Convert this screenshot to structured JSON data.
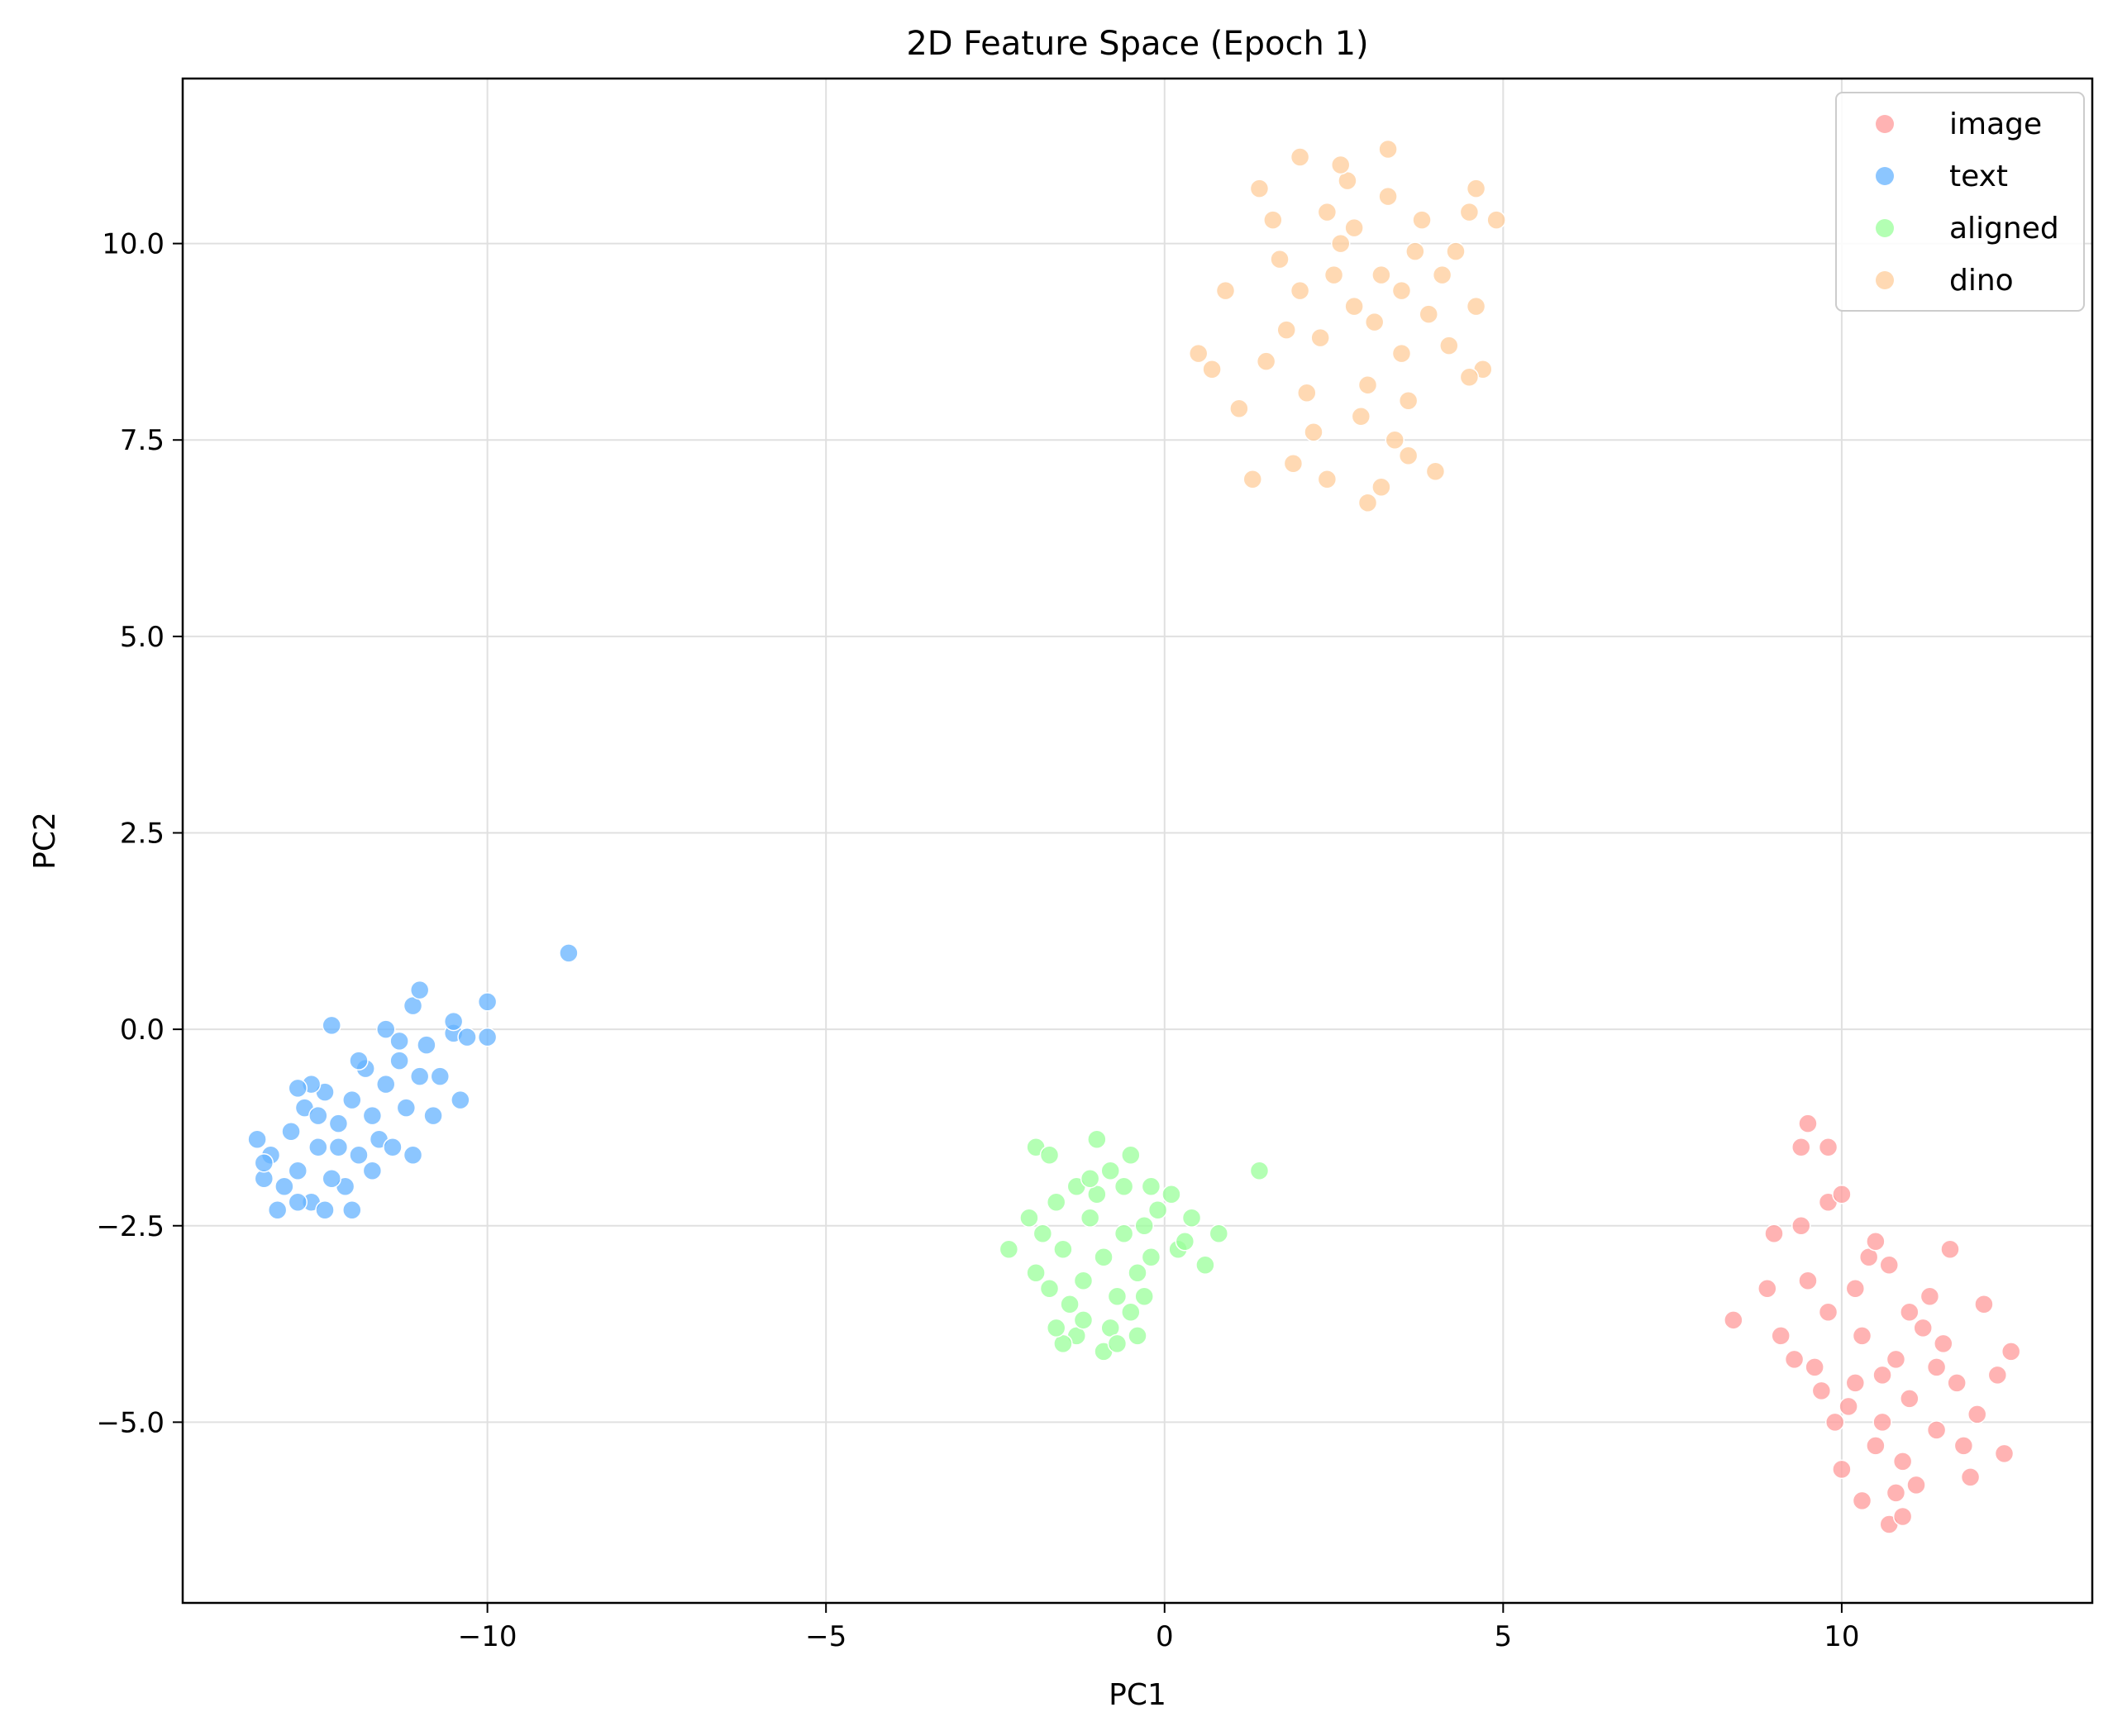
{
  "chart_data": {
    "type": "scatter",
    "title": "2D Feature Space (Epoch 1)",
    "xlabel": "PC1",
    "ylabel": "PC2",
    "xlim": [
      -14.5,
      13.7
    ],
    "ylim": [
      -7.3,
      12.1
    ],
    "x_ticks": [
      -10,
      -5,
      0,
      5,
      10
    ],
    "x_tick_labels": [
      "−10",
      "−5",
      "0",
      "5",
      "10"
    ],
    "y_ticks": [
      -5.0,
      -2.5,
      0.0,
      2.5,
      5.0,
      7.5,
      10.0
    ],
    "y_tick_labels": [
      "−5.0",
      "−2.5",
      "0.0",
      "2.5",
      "5.0",
      "7.5",
      "10.0"
    ],
    "grid": true,
    "legend_position": "top-right",
    "series": [
      {
        "name": "image",
        "color": "#ff9999",
        "points": [
          [
            10.6,
            -4.4
          ],
          [
            11.0,
            -4.7
          ],
          [
            10.3,
            -3.9
          ],
          [
            11.4,
            -5.1
          ],
          [
            10.8,
            -4.2
          ],
          [
            10.1,
            -4.8
          ],
          [
            11.7,
            -4.5
          ],
          [
            10.5,
            -5.3
          ],
          [
            9.8,
            -3.6
          ],
          [
            11.2,
            -3.8
          ],
          [
            10.9,
            -5.5
          ],
          [
            10.2,
            -3.3
          ],
          [
            11.5,
            -4.0
          ],
          [
            9.6,
            -4.3
          ],
          [
            12.0,
            -4.9
          ],
          [
            10.7,
            -3.0
          ],
          [
            11.1,
            -5.8
          ],
          [
            9.9,
            -5.0
          ],
          [
            12.3,
            -4.4
          ],
          [
            10.4,
            -2.9
          ],
          [
            11.8,
            -5.3
          ],
          [
            9.5,
            -3.2
          ],
          [
            10.0,
            -5.6
          ],
          [
            11.3,
            -3.4
          ],
          [
            12.5,
            -4.1
          ],
          [
            9.4,
            -2.5
          ],
          [
            9.5,
            -1.2
          ],
          [
            9.4,
            -1.5
          ],
          [
            9.8,
            -1.5
          ],
          [
            9.8,
            -2.2
          ],
          [
            10.0,
            -2.1
          ],
          [
            10.7,
            -6.3
          ],
          [
            8.4,
            -3.7
          ],
          [
            8.9,
            -3.3
          ],
          [
            9.0,
            -2.6
          ],
          [
            9.1,
            -3.9
          ],
          [
            10.5,
            -2.7
          ],
          [
            11.6,
            -2.8
          ],
          [
            10.9,
            -6.2
          ],
          [
            12.1,
            -3.5
          ],
          [
            10.3,
            -6.0
          ],
          [
            11.0,
            -3.6
          ],
          [
            9.7,
            -4.6
          ],
          [
            10.6,
            -5.0
          ],
          [
            11.9,
            -5.7
          ],
          [
            12.4,
            -5.4
          ],
          [
            9.3,
            -4.2
          ],
          [
            10.2,
            -4.5
          ],
          [
            11.4,
            -4.3
          ],
          [
            10.8,
            -5.9
          ]
        ]
      },
      {
        "name": "text",
        "color": "#66b3ff",
        "points": [
          [
            -12.5,
            -1.5
          ],
          [
            -12.8,
            -1.8
          ],
          [
            -12.2,
            -1.2
          ],
          [
            -13.0,
            -2.0
          ],
          [
            -12.0,
            -0.9
          ],
          [
            -11.7,
            -1.1
          ],
          [
            -12.6,
            -2.2
          ],
          [
            -13.2,
            -1.6
          ],
          [
            -11.9,
            -1.6
          ],
          [
            -12.4,
            -0.8
          ],
          [
            -11.5,
            -0.7
          ],
          [
            -12.9,
            -1.3
          ],
          [
            -13.3,
            -1.9
          ],
          [
            -11.3,
            -0.4
          ],
          [
            -12.1,
            -2.0
          ],
          [
            -11.8,
            -0.5
          ],
          [
            -12.7,
            -1.0
          ],
          [
            -11.2,
            -1.0
          ],
          [
            -13.1,
            -2.3
          ],
          [
            -12.3,
            -1.9
          ],
          [
            -11.6,
            -1.4
          ],
          [
            -12.6,
            -0.7
          ],
          [
            -11.0,
            -0.6
          ],
          [
            -11.4,
            -1.5
          ],
          [
            -13.4,
            -1.4
          ],
          [
            -12.0,
            -2.3
          ],
          [
            -11.1,
            0.3
          ],
          [
            -11.0,
            0.5
          ],
          [
            -12.3,
            0.05
          ],
          [
            -10.9,
            -0.2
          ],
          [
            -10.5,
            -0.05
          ],
          [
            -10.3,
            -0.1
          ],
          [
            -10.0,
            0.35
          ],
          [
            -10.0,
            -0.1
          ],
          [
            -10.5,
            0.1
          ],
          [
            -10.4,
            -0.9
          ],
          [
            -10.8,
            -1.1
          ],
          [
            -11.1,
            -1.6
          ],
          [
            -8.8,
            0.97
          ],
          [
            -11.5,
            0.0
          ],
          [
            -12.8,
            -0.75
          ],
          [
            -11.7,
            -1.8
          ],
          [
            -12.4,
            -2.3
          ],
          [
            -10.7,
            -0.6
          ],
          [
            -11.3,
            -0.15
          ],
          [
            -13.3,
            -1.7
          ],
          [
            -12.5,
            -1.1
          ],
          [
            -11.9,
            -0.4
          ],
          [
            -12.2,
            -1.5
          ],
          [
            -12.8,
            -2.2
          ]
        ]
      },
      {
        "name": "aligned",
        "color": "#99ff99",
        "points": [
          [
            -0.9,
            -2.9
          ],
          [
            -1.2,
            -3.2
          ],
          [
            -0.6,
            -2.6
          ],
          [
            -1.4,
            -3.5
          ],
          [
            -0.8,
            -3.8
          ],
          [
            -1.1,
            -2.4
          ],
          [
            -0.4,
            -3.1
          ],
          [
            -1.5,
            -2.8
          ],
          [
            -0.7,
            -3.4
          ],
          [
            -1.0,
            -2.1
          ],
          [
            -0.3,
            -2.5
          ],
          [
            -1.3,
            -3.9
          ],
          [
            -0.5,
            -3.6
          ],
          [
            -1.6,
            -2.2
          ],
          [
            -0.2,
            -2.9
          ],
          [
            -1.7,
            -3.3
          ],
          [
            -0.9,
            -4.1
          ],
          [
            -0.1,
            -2.3
          ],
          [
            -1.8,
            -2.6
          ],
          [
            -0.6,
            -2.0
          ],
          [
            -1.2,
            -3.7
          ],
          [
            -0.8,
            -1.8
          ],
          [
            -1.0,
            -1.4
          ],
          [
            -1.9,
            -1.5
          ],
          [
            -1.7,
            -1.6
          ],
          [
            -0.5,
            -1.6
          ],
          [
            1.4,
            -1.8
          ],
          [
            -2.3,
            -2.8
          ],
          [
            0.6,
            -3.0
          ],
          [
            0.8,
            -2.6
          ],
          [
            0.4,
            -2.4
          ],
          [
            0.1,
            -2.1
          ],
          [
            -0.2,
            -2.0
          ],
          [
            -1.5,
            -4.0
          ],
          [
            -0.4,
            -3.9
          ],
          [
            -1.9,
            -3.1
          ],
          [
            -1.3,
            -2.0
          ],
          [
            -0.3,
            -3.4
          ],
          [
            -2.0,
            -2.4
          ],
          [
            0.2,
            -2.8
          ],
          [
            -1.1,
            -1.9
          ],
          [
            -0.7,
            -4.0
          ],
          [
            0.3,
            -2.7
          ],
          [
            -1.6,
            -3.8
          ]
        ]
      },
      {
        "name": "dino",
        "color": "#ffcc99",
        "points": [
          [
            2.8,
            9.2
          ],
          [
            2.3,
            8.8
          ],
          [
            3.2,
            9.6
          ],
          [
            2.6,
            10.0
          ],
          [
            3.5,
            8.6
          ],
          [
            2.0,
            9.4
          ],
          [
            3.0,
            8.2
          ],
          [
            2.4,
            10.4
          ],
          [
            3.7,
            9.9
          ],
          [
            1.8,
            8.9
          ],
          [
            2.9,
            7.8
          ],
          [
            3.3,
            10.6
          ],
          [
            2.1,
            8.1
          ],
          [
            3.9,
            9.1
          ],
          [
            1.7,
            9.8
          ],
          [
            2.7,
            10.8
          ],
          [
            3.6,
            8.0
          ],
          [
            2.2,
            7.6
          ],
          [
            3.1,
            9.0
          ],
          [
            4.1,
            9.6
          ],
          [
            1.5,
            8.5
          ],
          [
            2.5,
            9.6
          ],
          [
            4.2,
            8.7
          ],
          [
            1.6,
            10.3
          ],
          [
            3.4,
            7.5
          ],
          [
            2.0,
            11.1
          ],
          [
            3.3,
            11.2
          ],
          [
            2.6,
            11.0
          ],
          [
            4.6,
            10.7
          ],
          [
            4.9,
            10.3
          ],
          [
            4.5,
            10.4
          ],
          [
            0.5,
            8.6
          ],
          [
            0.7,
            8.4
          ],
          [
            4.7,
            8.4
          ],
          [
            4.0,
            7.1
          ],
          [
            4.5,
            8.3
          ],
          [
            4.6,
            9.2
          ],
          [
            1.3,
            7.0
          ],
          [
            3.0,
            6.7
          ],
          [
            2.4,
            7.0
          ],
          [
            3.2,
            6.9
          ],
          [
            1.9,
            7.2
          ],
          [
            3.6,
            7.3
          ],
          [
            1.1,
            7.9
          ],
          [
            0.9,
            9.4
          ],
          [
            4.3,
            9.9
          ],
          [
            3.8,
            10.3
          ],
          [
            1.4,
            10.7
          ],
          [
            2.8,
            10.2
          ],
          [
            3.5,
            9.4
          ]
        ]
      }
    ]
  }
}
